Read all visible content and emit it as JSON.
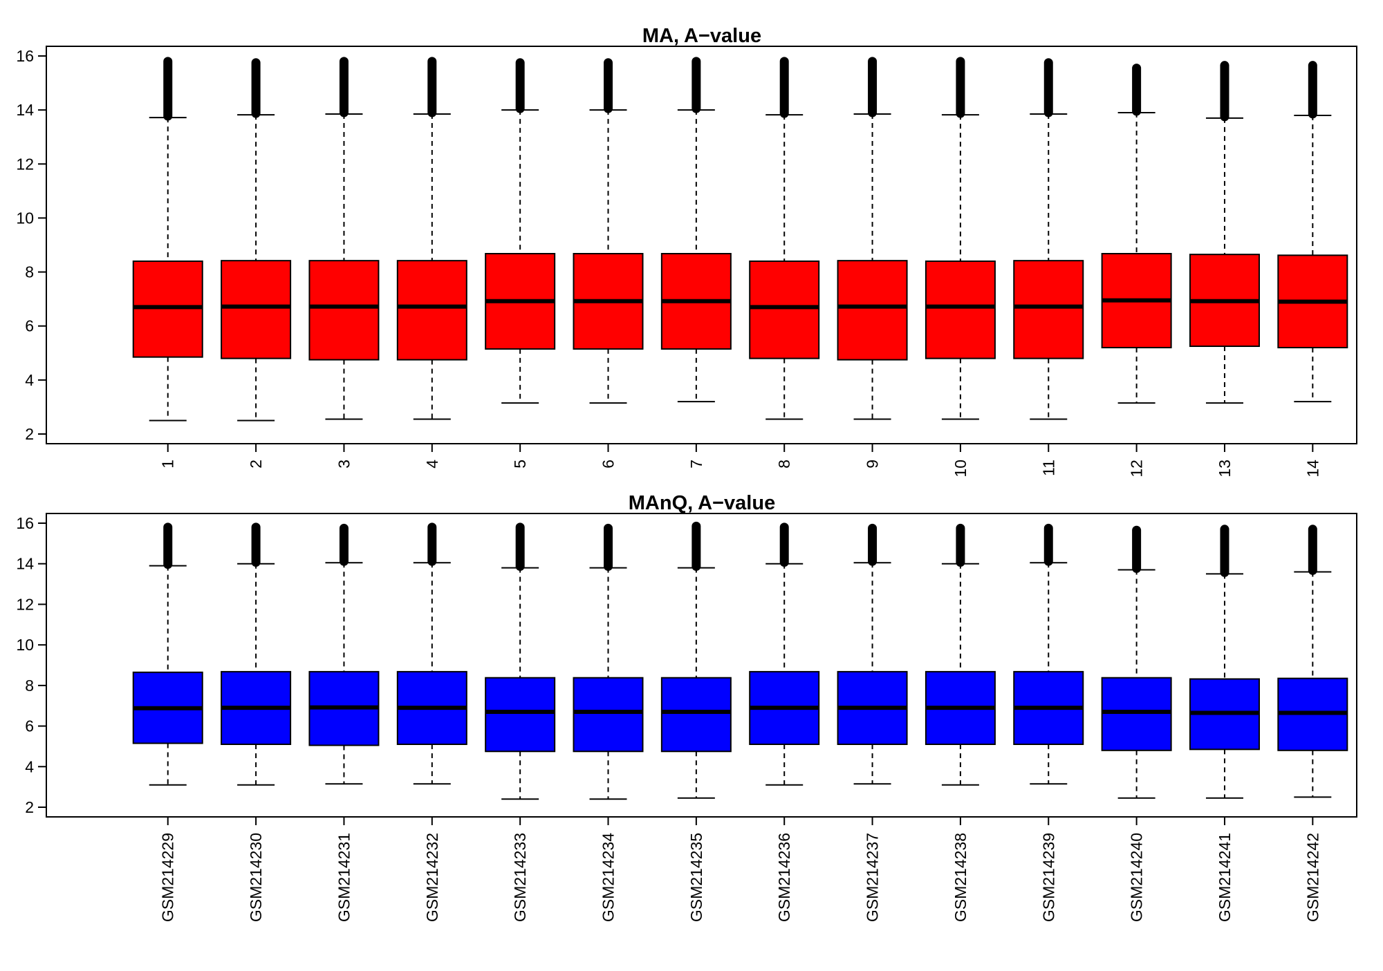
{
  "chart_data": [
    {
      "type": "box",
      "title": "MA, A−value",
      "xlabel": "",
      "ylabel": "",
      "ylim": [
        2,
        16
      ],
      "yticks": [
        2,
        4,
        6,
        8,
        10,
        12,
        14,
        16
      ],
      "categories": [
        "1",
        "2",
        "3",
        "4",
        "5",
        "6",
        "7",
        "8",
        "9",
        "10",
        "11",
        "12",
        "13",
        "14"
      ],
      "box_color": "#ff0000",
      "outlier_top": [
        15.8,
        15.75,
        15.8,
        15.8,
        15.75,
        15.75,
        15.8,
        15.8,
        15.8,
        15.8,
        15.75,
        15.55,
        15.65,
        15.65
      ],
      "series": [
        {
          "whisker_low": [
            2.5,
            2.5,
            2.55,
            2.55,
            3.15,
            3.15,
            3.2,
            2.55,
            2.55,
            2.55,
            2.55,
            3.15,
            3.15,
            3.2
          ],
          "q1": [
            4.85,
            4.8,
            4.75,
            4.75,
            5.15,
            5.15,
            5.15,
            4.8,
            4.75,
            4.8,
            4.8,
            5.2,
            5.25,
            5.2
          ],
          "median": [
            6.7,
            6.72,
            6.72,
            6.72,
            6.92,
            6.92,
            6.92,
            6.7,
            6.72,
            6.72,
            6.72,
            6.95,
            6.92,
            6.9
          ],
          "q3": [
            8.4,
            8.42,
            8.42,
            8.42,
            8.68,
            8.68,
            8.68,
            8.4,
            8.42,
            8.4,
            8.42,
            8.68,
            8.65,
            8.62
          ],
          "whisker_high": [
            13.72,
            13.82,
            13.85,
            13.85,
            14.0,
            14.0,
            14.0,
            13.82,
            13.85,
            13.82,
            13.85,
            13.9,
            13.7,
            13.8
          ]
        }
      ]
    },
    {
      "type": "box",
      "title": "MAnQ, A−value",
      "xlabel": "",
      "ylabel": "",
      "ylim": [
        2,
        16
      ],
      "yticks": [
        2,
        4,
        6,
        8,
        10,
        12,
        14,
        16
      ],
      "categories": [
        "GSM214229",
        "GSM214230",
        "GSM214231",
        "GSM214232",
        "GSM214233",
        "GSM214234",
        "GSM214235",
        "GSM214236",
        "GSM214237",
        "GSM214238",
        "GSM214239",
        "GSM214240",
        "GSM214241",
        "GSM214242"
      ],
      "box_color": "#0000ff",
      "outlier_top": [
        15.8,
        15.8,
        15.75,
        15.8,
        15.8,
        15.75,
        15.85,
        15.8,
        15.75,
        15.75,
        15.75,
        15.65,
        15.7,
        15.7
      ],
      "series": [
        {
          "whisker_low": [
            3.1,
            3.1,
            3.15,
            3.15,
            2.4,
            2.4,
            2.45,
            3.1,
            3.15,
            3.1,
            3.15,
            2.45,
            2.45,
            2.5
          ],
          "q1": [
            5.15,
            5.1,
            5.05,
            5.1,
            4.75,
            4.75,
            4.75,
            5.1,
            5.1,
            5.1,
            5.1,
            4.8,
            4.85,
            4.8
          ],
          "median": [
            6.88,
            6.9,
            6.92,
            6.9,
            6.7,
            6.7,
            6.7,
            6.9,
            6.9,
            6.9,
            6.9,
            6.7,
            6.65,
            6.65
          ],
          "q3": [
            8.65,
            8.68,
            8.68,
            8.68,
            8.38,
            8.38,
            8.38,
            8.68,
            8.68,
            8.68,
            8.68,
            8.38,
            8.32,
            8.35
          ],
          "whisker_high": [
            13.9,
            14.0,
            14.05,
            14.05,
            13.8,
            13.8,
            13.8,
            14.0,
            14.05,
            14.0,
            14.05,
            13.7,
            13.5,
            13.6
          ]
        }
      ]
    }
  ]
}
